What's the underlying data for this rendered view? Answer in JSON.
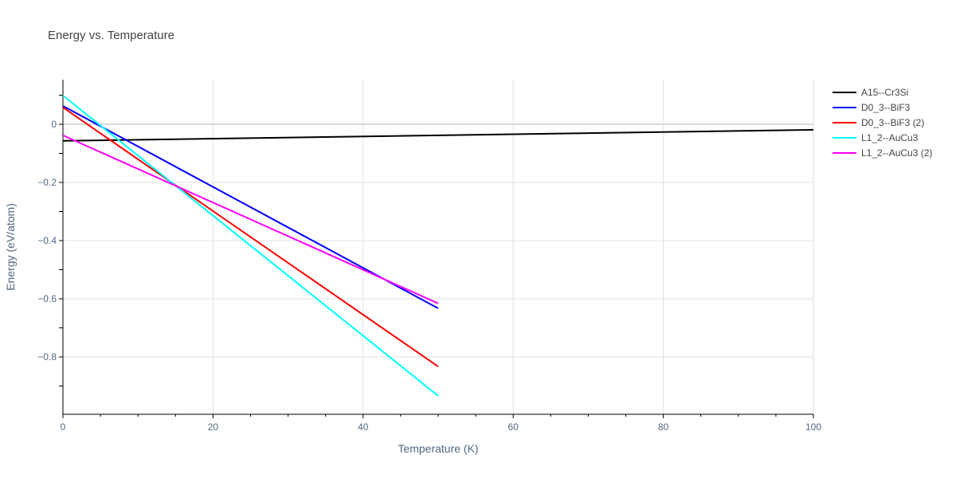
{
  "chart_data": {
    "type": "line",
    "title": "Energy vs. Temperature",
    "xlabel": "Temperature (K)",
    "ylabel": "Energy (eV/atom)",
    "xlim": [
      0,
      100
    ],
    "ylim": [
      -1.0,
      0.15
    ],
    "xticks": [
      0,
      20,
      40,
      60,
      80,
      100
    ],
    "yticks": [
      0,
      -0.2,
      -0.4,
      -0.6,
      -0.8
    ],
    "ytick_labels": [
      "0",
      "−0.2",
      "−0.4",
      "−0.6",
      "−0.8"
    ],
    "grid": true,
    "legend_position": "right",
    "series": [
      {
        "name": "A15--Cr3Si",
        "color": "#000000",
        "x": [
          0,
          100
        ],
        "y": [
          -0.057,
          -0.019
        ]
      },
      {
        "name": "D0_3--BiF3",
        "color": "#0000ff",
        "x": [
          0,
          50
        ],
        "y": [
          0.063,
          -0.633
        ]
      },
      {
        "name": "D0_3--BiF3 (2)",
        "color": "#ff0000",
        "x": [
          0,
          50
        ],
        "y": [
          0.058,
          -0.833
        ]
      },
      {
        "name": "L1_2--AuCu3",
        "color": "#00ffff",
        "x": [
          0,
          50
        ],
        "y": [
          0.099,
          -0.934
        ]
      },
      {
        "name": "L1_2--AuCu3 (2)",
        "color": "#ff00ff",
        "x": [
          0,
          50
        ],
        "y": [
          -0.038,
          -0.616
        ]
      }
    ]
  }
}
